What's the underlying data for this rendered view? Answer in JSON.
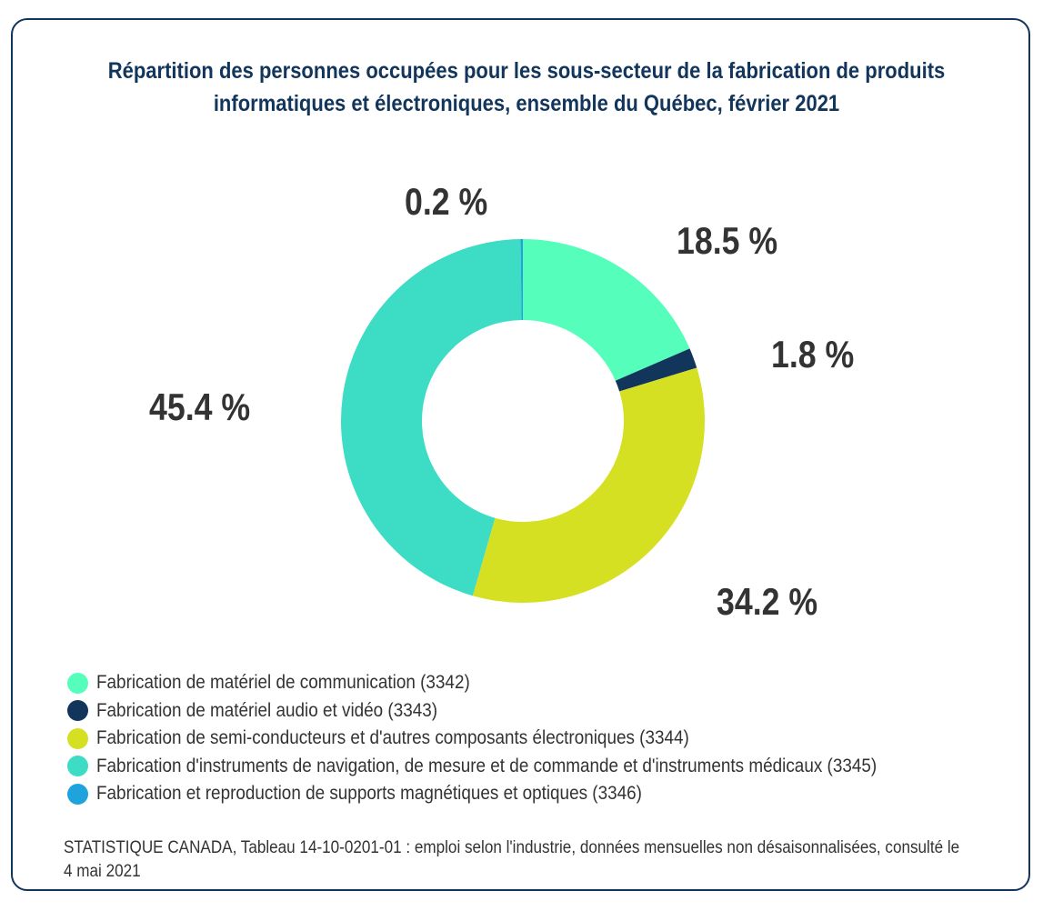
{
  "chart_data": {
    "type": "pie",
    "title": "Répartition des personnes occupées pour les sous-secteur de la fabrication de produits informatiques et électroniques, ensemble du Québec, février 2021",
    "series": [
      {
        "name": "Fabrication de matériel de communication (3342)",
        "value": 18.5,
        "label": "18.5 %",
        "color": "#55ffbb"
      },
      {
        "name": "Fabrication de matériel audio et vidéo (3343)",
        "value": 1.8,
        "label": "1.8 %",
        "color": "#12355b"
      },
      {
        "name": "Fabrication de semi-conducteurs et d'autres composants électroniques (3344)",
        "value": 34.2,
        "label": "34.2 %",
        "color": "#d6e022"
      },
      {
        "name": "Fabrication d'instruments de navigation, de mesure et de commande et d'instruments médicaux (3345)",
        "value": 45.4,
        "label": "45.4 %",
        "color": "#3ddcc4"
      },
      {
        "name": "Fabrication et reproduction de supports magnétiques et optiques (3346)",
        "value": 0.2,
        "label": "0.2 %",
        "color": "#1fa3dc"
      }
    ],
    "donut": true,
    "legend": "bottom-left",
    "source": "STATISTIQUE CANADA, Tableau 14-10-0201-01 : emploi selon l'industrie, données mensuelles non désaisonnalisées, consulté le 4 mai 2021"
  }
}
